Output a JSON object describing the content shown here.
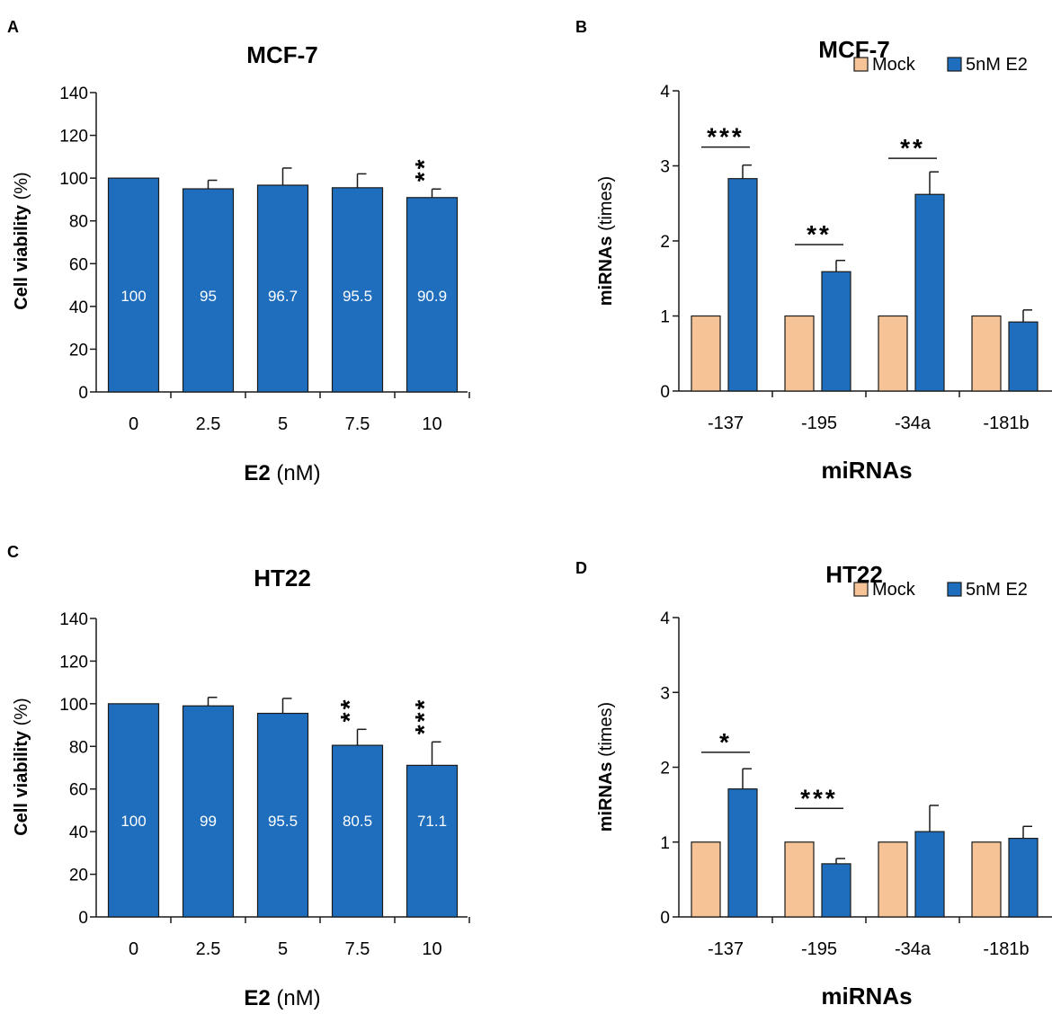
{
  "colors": {
    "e2": "#1f6ebd",
    "mock": "#f5c396",
    "edge": "#1a1a1a",
    "label_text": "#ffffff"
  },
  "chart_data": [
    {
      "panel": "A",
      "type": "bar",
      "title": "MCF-7",
      "xlabel_bold": "E2",
      "xlabel_rest": " (nM)",
      "ylabel_bold": "Cell viability",
      "ylabel_rest": " (%)",
      "ylim": [
        0,
        140
      ],
      "yticks": [
        0,
        20,
        40,
        60,
        80,
        100,
        120,
        140
      ],
      "categories": [
        "0",
        "2.5",
        "5",
        "7.5",
        "10"
      ],
      "series": [
        {
          "name": "E2",
          "color": "e2",
          "values": [
            100,
            95,
            96.7,
            95.5,
            90.9
          ],
          "errors": [
            0,
            4,
            8,
            6.5,
            4
          ]
        }
      ],
      "value_labels": [
        "100",
        "95",
        "96.7",
        "95.5",
        "90.9"
      ],
      "significance": [
        {
          "category": 4,
          "text": "**"
        }
      ]
    },
    {
      "panel": "B",
      "type": "bar",
      "title": "MCF-7",
      "xlabel_bold": "miRNAs",
      "xlabel_rest": "",
      "ylabel_bold": "miRNAs",
      "ylabel_rest": " (times)",
      "ylim": [
        0,
        4
      ],
      "yticks": [
        0,
        1,
        2,
        3,
        4
      ],
      "categories": [
        "-137",
        "-195",
        "-34a",
        "-181b"
      ],
      "series": [
        {
          "name": "Mock",
          "color": "mock",
          "values": [
            1,
            1,
            1,
            1
          ],
          "errors": [
            0,
            0,
            0,
            0
          ]
        },
        {
          "name": "5nM E2",
          "color": "e2",
          "values": [
            2.83,
            1.59,
            2.62,
            0.92
          ],
          "errors": [
            0.18,
            0.15,
            0.3,
            0.16
          ]
        }
      ],
      "legend": [
        "Mock",
        "5nM E2"
      ],
      "significance": [
        {
          "category": 0,
          "text": "***",
          "y": 3.25
        },
        {
          "category": 1,
          "text": "**",
          "y": 1.95
        },
        {
          "category": 2,
          "text": "**",
          "y": 3.1
        }
      ]
    },
    {
      "panel": "C",
      "type": "bar",
      "title": "HT22",
      "xlabel_bold": "E2",
      "xlabel_rest": " (nM)",
      "ylabel_bold": "Cell viability",
      "ylabel_rest": " (%)",
      "ylim": [
        0,
        140
      ],
      "yticks": [
        0,
        20,
        40,
        60,
        80,
        100,
        120,
        140
      ],
      "categories": [
        "0",
        "2.5",
        "5",
        "7.5",
        "10"
      ],
      "series": [
        {
          "name": "E2",
          "color": "e2",
          "values": [
            100,
            99,
            95.5,
            80.5,
            71.1
          ],
          "errors": [
            0,
            4,
            7,
            7.5,
            11
          ]
        }
      ],
      "value_labels": [
        "100",
        "99",
        "95.5",
        "80.5",
        "71.1"
      ],
      "significance": [
        {
          "category": 3,
          "text": "**"
        },
        {
          "category": 4,
          "text": "***"
        }
      ]
    },
    {
      "panel": "D",
      "type": "bar",
      "title": "HT22",
      "xlabel_bold": "miRNAs",
      "xlabel_rest": "",
      "ylabel_bold": "miRNAs",
      "ylabel_rest": " (times)",
      "ylim": [
        0,
        4
      ],
      "yticks": [
        0,
        1,
        2,
        3,
        4
      ],
      "categories": [
        "-137",
        "-195",
        "-34a",
        "-181b"
      ],
      "series": [
        {
          "name": "Mock",
          "color": "mock",
          "values": [
            1,
            1,
            1,
            1
          ],
          "errors": [
            0,
            0,
            0,
            0
          ]
        },
        {
          "name": "5nM E2",
          "color": "e2",
          "values": [
            1.71,
            0.71,
            1.14,
            1.05
          ],
          "errors": [
            0.27,
            0.07,
            0.35,
            0.16
          ]
        }
      ],
      "legend": [
        "Mock",
        "5nM E2"
      ],
      "significance": [
        {
          "category": 0,
          "text": "*",
          "y": 2.2
        },
        {
          "category": 1,
          "text": "***",
          "y": 1.45
        }
      ]
    }
  ]
}
